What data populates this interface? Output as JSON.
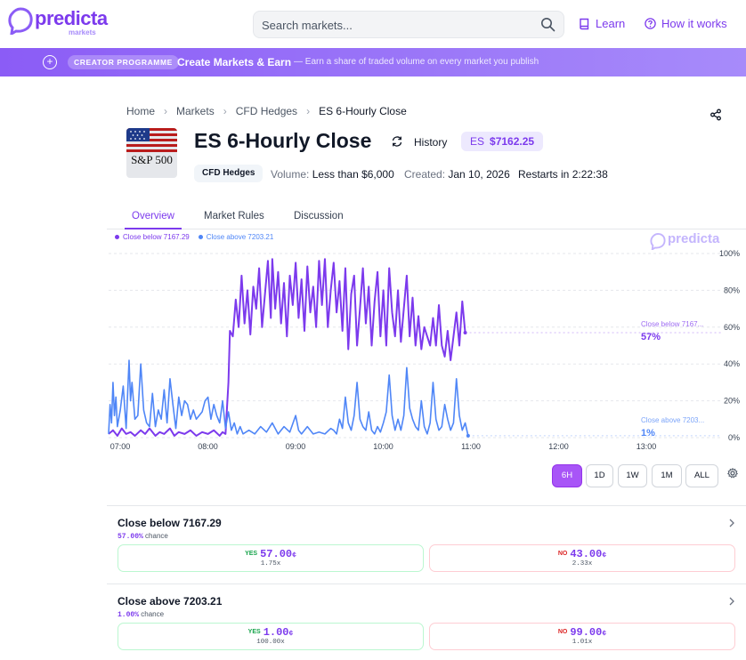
{
  "header": {
    "logo_word": "predicta",
    "logo_sub": "markets",
    "search_placeholder": "Search markets...",
    "learn_label": "Learn",
    "how_label": "How it works"
  },
  "banner": {
    "badge": "CREATOR PROGRAMME",
    "title": "Create Markets & Earn",
    "desc": "— Earn a share of traded volume on every market you publish"
  },
  "breadcrumb": [
    "Home",
    "Markets",
    "CFD Hedges",
    "ES 6-Hourly Close"
  ],
  "market": {
    "thumb_text": "S&P 500",
    "title": "ES 6-Hourly Close",
    "history_label": "History",
    "price_symbol": "ES",
    "price_value": "$7162.25",
    "tag": "CFD Hedges",
    "volume_label": "Volume:",
    "volume_value": "Less than $6,000",
    "created_label": "Created:",
    "created_value": "Jan 10, 2026",
    "restarts_label": "Restarts in",
    "restarts_value": "2:22:38"
  },
  "tabs": [
    "Overview",
    "Market Rules",
    "Discussion"
  ],
  "ranges": [
    "6H",
    "1D",
    "1W",
    "1M",
    "ALL"
  ],
  "colors": {
    "accent": "#7c3aed",
    "series1": "#7c3aed",
    "series2": "#4f86f7"
  },
  "chart_data": {
    "type": "line",
    "x_ticks": [
      "07:00",
      "08:00",
      "09:00",
      "10:00",
      "11:00",
      "12:00",
      "13:00"
    ],
    "y_ticks": [
      "0%",
      "20%",
      "40%",
      "60%",
      "80%",
      "100%"
    ],
    "ylim": [
      0,
      100
    ],
    "x_range_minutes": [
      0,
      360
    ],
    "watermark": "predicta",
    "series": [
      {
        "name": "Close below 7167.29",
        "color": "#7c3aed",
        "end_label": "Close below 7167...",
        "end_value": "57%",
        "points": [
          [
            0,
            2
          ],
          [
            3,
            4
          ],
          [
            6,
            1
          ],
          [
            9,
            5
          ],
          [
            12,
            2
          ],
          [
            15,
            3
          ],
          [
            18,
            1
          ],
          [
            22,
            4
          ],
          [
            25,
            2
          ],
          [
            28,
            5
          ],
          [
            32,
            1
          ],
          [
            35,
            3
          ],
          [
            38,
            2
          ],
          [
            42,
            5
          ],
          [
            45,
            1
          ],
          [
            48,
            3
          ],
          [
            52,
            2
          ],
          [
            56,
            4
          ],
          [
            60,
            1
          ],
          [
            64,
            3
          ],
          [
            68,
            2
          ],
          [
            72,
            4
          ],
          [
            76,
            1
          ],
          [
            78,
            3
          ],
          [
            80,
            2
          ],
          [
            82,
            30
          ],
          [
            83,
            58
          ],
          [
            85,
            55
          ],
          [
            87,
            75
          ],
          [
            89,
            60
          ],
          [
            91,
            88
          ],
          [
            93,
            62
          ],
          [
            95,
            80
          ],
          [
            97,
            56
          ],
          [
            99,
            82
          ],
          [
            101,
            70
          ],
          [
            103,
            92
          ],
          [
            105,
            60
          ],
          [
            107,
            78
          ],
          [
            109,
            96
          ],
          [
            111,
            65
          ],
          [
            112,
            97
          ],
          [
            114,
            70
          ],
          [
            116,
            90
          ],
          [
            118,
            62
          ],
          [
            120,
            84
          ],
          [
            122,
            55
          ],
          [
            124,
            88
          ],
          [
            126,
            72
          ],
          [
            128,
            95
          ],
          [
            130,
            65
          ],
          [
            132,
            86
          ],
          [
            134,
            58
          ],
          [
            136,
            93
          ],
          [
            138,
            68
          ],
          [
            140,
            82
          ],
          [
            142,
            60
          ],
          [
            144,
            96
          ],
          [
            146,
            72
          ],
          [
            148,
            97
          ],
          [
            150,
            60
          ],
          [
            152,
            80
          ],
          [
            154,
            95
          ],
          [
            156,
            68
          ],
          [
            158,
            85
          ],
          [
            160,
            58
          ],
          [
            162,
            92
          ],
          [
            164,
            48
          ],
          [
            166,
            78
          ],
          [
            168,
            88
          ],
          [
            170,
            50
          ],
          [
            172,
            70
          ],
          [
            174,
            92
          ],
          [
            176,
            62
          ],
          [
            178,
            82
          ],
          [
            180,
            50
          ],
          [
            182,
            74
          ],
          [
            184,
            90
          ],
          [
            186,
            55
          ],
          [
            188,
            80
          ],
          [
            190,
            50
          ],
          [
            192,
            92
          ],
          [
            194,
            68
          ],
          [
            196,
            55
          ],
          [
            198,
            80
          ],
          [
            200,
            52
          ],
          [
            202,
            70
          ],
          [
            204,
            88
          ],
          [
            206,
            55
          ],
          [
            208,
            76
          ],
          [
            210,
            50
          ],
          [
            212,
            66
          ],
          [
            214,
            48
          ],
          [
            216,
            60
          ],
          [
            218,
            55
          ],
          [
            220,
            50
          ],
          [
            222,
            65
          ],
          [
            224,
            50
          ],
          [
            226,
            72
          ],
          [
            228,
            50
          ],
          [
            230,
            44
          ],
          [
            232,
            58
          ],
          [
            234,
            42
          ],
          [
            236,
            55
          ],
          [
            238,
            68
          ],
          [
            240,
            50
          ],
          [
            242,
            74
          ],
          [
            244,
            57
          ]
        ]
      },
      {
        "name": "Close above 7203.21",
        "color": "#4f86f7",
        "end_label": "Close above 7203...",
        "end_value": "1%",
        "points": [
          [
            0,
            2
          ],
          [
            1,
            18
          ],
          [
            2,
            8
          ],
          [
            3,
            30
          ],
          [
            4,
            12
          ],
          [
            5,
            22
          ],
          [
            6,
            6
          ],
          [
            8,
            15
          ],
          [
            10,
            28
          ],
          [
            12,
            5
          ],
          [
            14,
            42
          ],
          [
            15,
            20
          ],
          [
            16,
            30
          ],
          [
            18,
            10
          ],
          [
            20,
            12
          ],
          [
            22,
            40
          ],
          [
            24,
            15
          ],
          [
            26,
            8
          ],
          [
            28,
            6
          ],
          [
            30,
            24
          ],
          [
            32,
            6
          ],
          [
            34,
            15
          ],
          [
            36,
            10
          ],
          [
            38,
            26
          ],
          [
            40,
            8
          ],
          [
            42,
            32
          ],
          [
            44,
            18
          ],
          [
            46,
            5
          ],
          [
            48,
            22
          ],
          [
            50,
            12
          ],
          [
            52,
            20
          ],
          [
            54,
            18
          ],
          [
            56,
            10
          ],
          [
            58,
            15
          ],
          [
            60,
            10
          ],
          [
            62,
            12
          ],
          [
            64,
            14
          ],
          [
            66,
            20
          ],
          [
            68,
            22
          ],
          [
            70,
            10
          ],
          [
            72,
            18
          ],
          [
            74,
            12
          ],
          [
            76,
            8
          ],
          [
            78,
            20
          ],
          [
            80,
            5
          ],
          [
            82,
            14
          ],
          [
            84,
            4
          ],
          [
            86,
            8
          ],
          [
            88,
            2
          ],
          [
            90,
            6
          ],
          [
            92,
            2
          ],
          [
            96,
            4
          ],
          [
            100,
            2
          ],
          [
            104,
            6
          ],
          [
            108,
            3
          ],
          [
            112,
            8
          ],
          [
            116,
            2
          ],
          [
            120,
            6
          ],
          [
            124,
            3
          ],
          [
            128,
            12
          ],
          [
            130,
            4
          ],
          [
            132,
            2
          ],
          [
            136,
            6
          ],
          [
            140,
            2
          ],
          [
            144,
            3
          ],
          [
            148,
            2
          ],
          [
            152,
            5
          ],
          [
            154,
            4
          ],
          [
            156,
            2
          ],
          [
            158,
            10
          ],
          [
            160,
            5
          ],
          [
            162,
            22
          ],
          [
            164,
            8
          ],
          [
            166,
            4
          ],
          [
            168,
            12
          ],
          [
            170,
            30
          ],
          [
            172,
            10
          ],
          [
            174,
            6
          ],
          [
            176,
            4
          ],
          [
            178,
            14
          ],
          [
            180,
            4
          ],
          [
            182,
            2
          ],
          [
            184,
            6
          ],
          [
            186,
            3
          ],
          [
            188,
            8
          ],
          [
            190,
            14
          ],
          [
            192,
            34
          ],
          [
            194,
            12
          ],
          [
            196,
            4
          ],
          [
            198,
            10
          ],
          [
            200,
            4
          ],
          [
            202,
            12
          ],
          [
            204,
            38
          ],
          [
            206,
            16
          ],
          [
            208,
            10
          ],
          [
            210,
            6
          ],
          [
            212,
            4
          ],
          [
            214,
            20
          ],
          [
            216,
            6
          ],
          [
            218,
            2
          ],
          [
            220,
            8
          ],
          [
            222,
            30
          ],
          [
            224,
            10
          ],
          [
            226,
            4
          ],
          [
            228,
            6
          ],
          [
            230,
            18
          ],
          [
            232,
            10
          ],
          [
            234,
            4
          ],
          [
            236,
            8
          ],
          [
            238,
            32
          ],
          [
            240,
            12
          ],
          [
            242,
            4
          ],
          [
            244,
            8
          ],
          [
            246,
            1
          ]
        ]
      }
    ]
  },
  "outcomes": [
    {
      "name": "Close below 7167.29",
      "chance": "57.00%",
      "chance_suffix": "chance",
      "yes_label": "YES",
      "yes_price": "57.00",
      "yes_mult": "1.75x",
      "no_label": "NO",
      "no_price": "43.00",
      "no_mult": "2.33x",
      "cent": "¢"
    },
    {
      "name": "Close above 7203.21",
      "chance": "1.00%",
      "chance_suffix": "chance",
      "yes_label": "YES",
      "yes_price": "1.00",
      "yes_mult": "100.00x",
      "no_label": "NO",
      "no_price": "99.00",
      "no_mult": "1.01x",
      "cent": "¢"
    }
  ]
}
